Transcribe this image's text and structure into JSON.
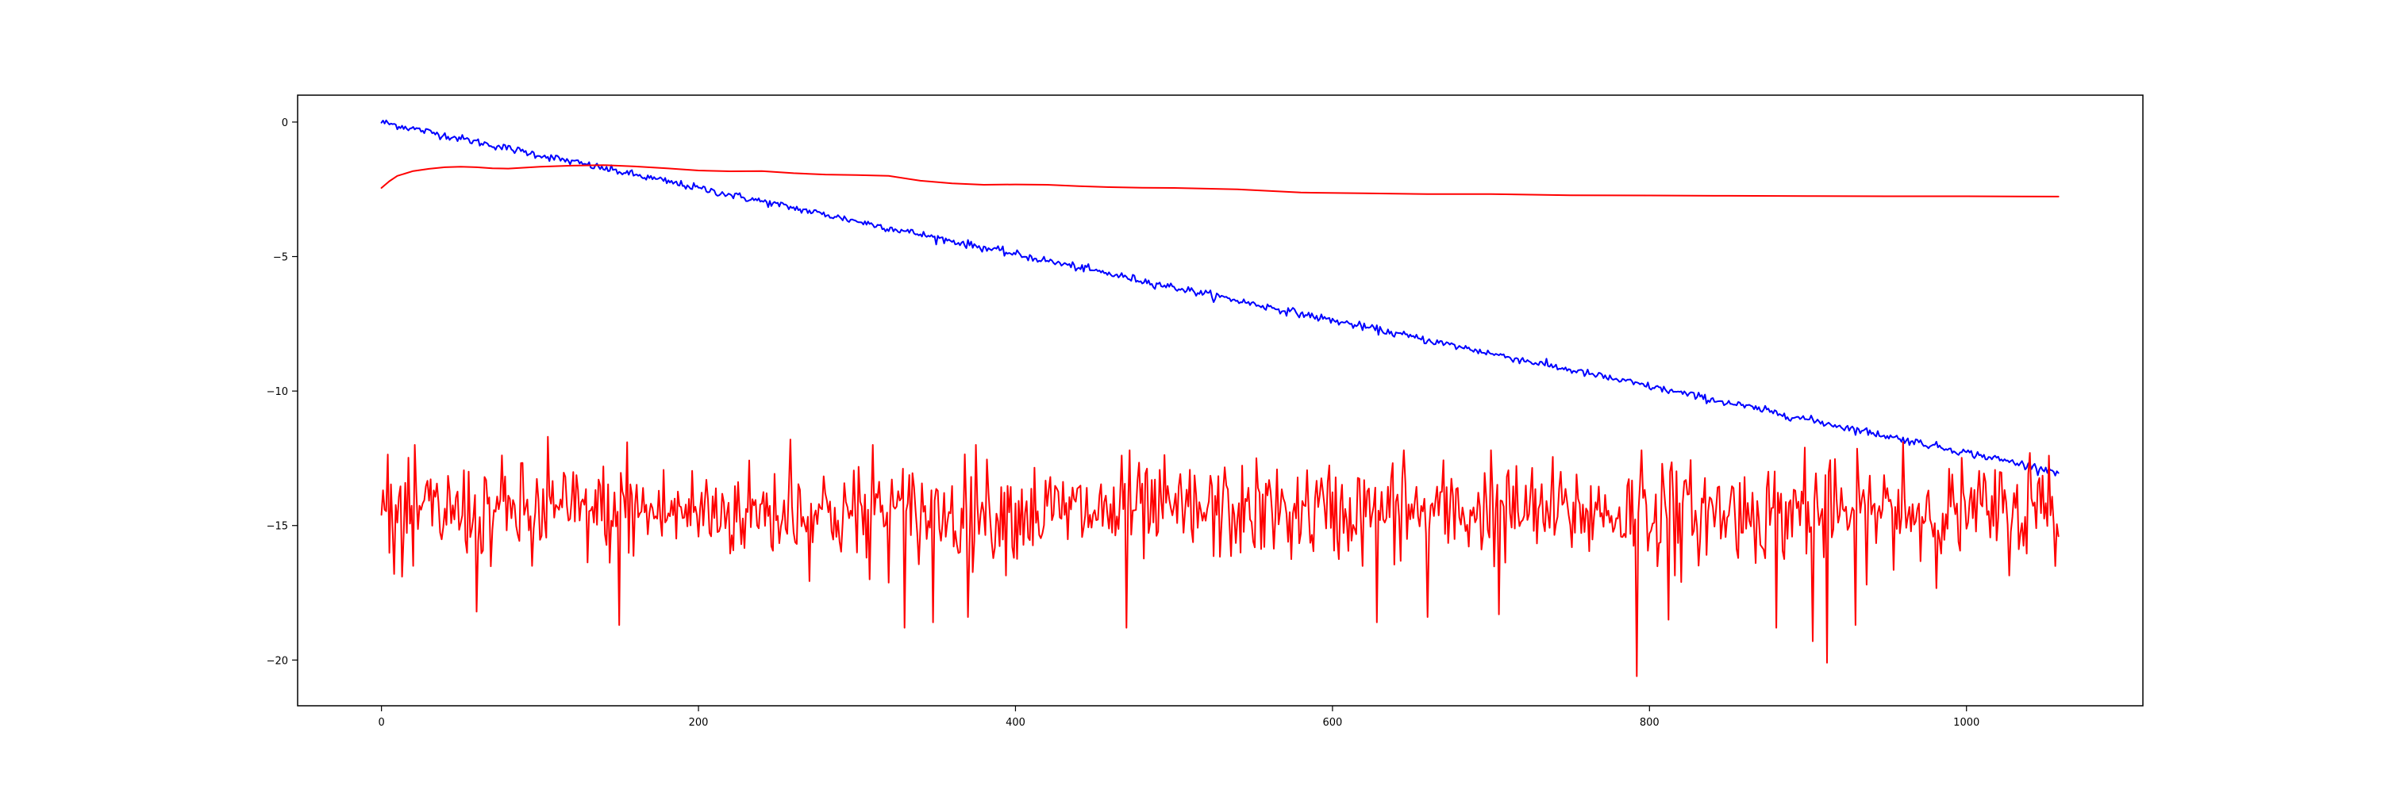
{
  "chart_data": {
    "type": "line",
    "title": "",
    "xlabel": "",
    "ylabel": "",
    "xlim": [
      -52.9,
      1111.3
    ],
    "ylim": [
      -21.7,
      1.0
    ],
    "grid": false,
    "legend": "none",
    "x_ticks": [
      0,
      200,
      400,
      600,
      800,
      1000
    ],
    "x_tick_labels": [
      "0",
      "200",
      "400",
      "600",
      "800",
      "1000"
    ],
    "y_ticks": [
      0,
      -5,
      -10,
      -15,
      -20
    ],
    "y_tick_labels": [
      "0",
      "−5",
      "−10",
      "−15",
      "−20"
    ],
    "x_range": [
      0,
      1058
    ],
    "series": [
      {
        "color": "#0000ff",
        "style": "noisy-linear",
        "start": [
          0,
          0.0
        ],
        "end": [
          1058,
          -13.0
        ],
        "noise_amplitude": 0.12
      },
      {
        "color": "#ff0000",
        "style": "smooth-curve",
        "points": [
          [
            0,
            -2.45
          ],
          [
            5,
            -2.2
          ],
          [
            10,
            -2.0
          ],
          [
            20,
            -1.82
          ],
          [
            30,
            -1.74
          ],
          [
            40,
            -1.68
          ],
          [
            50,
            -1.66
          ],
          [
            60,
            -1.68
          ],
          [
            70,
            -1.72
          ],
          [
            80,
            -1.73
          ],
          [
            100,
            -1.66
          ],
          [
            120,
            -1.62
          ],
          [
            140,
            -1.6
          ],
          [
            160,
            -1.65
          ],
          [
            180,
            -1.72
          ],
          [
            200,
            -1.8
          ],
          [
            220,
            -1.83
          ],
          [
            240,
            -1.82
          ],
          [
            260,
            -1.9
          ],
          [
            280,
            -1.95
          ],
          [
            300,
            -1.97
          ],
          [
            320,
            -2.0
          ],
          [
            340,
            -2.18
          ],
          [
            360,
            -2.28
          ],
          [
            380,
            -2.33
          ],
          [
            400,
            -2.32
          ],
          [
            420,
            -2.33
          ],
          [
            440,
            -2.38
          ],
          [
            460,
            -2.42
          ],
          [
            480,
            -2.44
          ],
          [
            500,
            -2.45
          ],
          [
            540,
            -2.5
          ],
          [
            580,
            -2.62
          ],
          [
            620,
            -2.65
          ],
          [
            660,
            -2.68
          ],
          [
            700,
            -2.68
          ],
          [
            750,
            -2.72
          ],
          [
            800,
            -2.73
          ],
          [
            850,
            -2.74
          ],
          [
            900,
            -2.75
          ],
          [
            950,
            -2.76
          ],
          [
            1000,
            -2.76
          ],
          [
            1058,
            -2.77
          ]
        ]
      },
      {
        "color": "#ff0000",
        "style": "noise",
        "mean": -14.5,
        "std": 0.9,
        "min": -20.6,
        "max": -11.7,
        "first_value": -14.6,
        "last_value": -15.4,
        "spikes": [
          [
            8,
            -16.8
          ],
          [
            13,
            -16.9
          ],
          [
            20,
            -16.5
          ],
          [
            60,
            -18.2
          ],
          [
            95,
            -16.5
          ],
          [
            105,
            -11.7
          ],
          [
            150,
            -18.7
          ],
          [
            155,
            -11.9
          ],
          [
            258,
            -11.8
          ],
          [
            300,
            -16.0
          ],
          [
            308,
            -17.0
          ],
          [
            310,
            -12.0
          ],
          [
            330,
            -18.8
          ],
          [
            348,
            -18.6
          ],
          [
            370,
            -18.4
          ],
          [
            375,
            -12.0
          ],
          [
            470,
            -18.8
          ],
          [
            472,
            -12.2
          ],
          [
            628,
            -18.6
          ],
          [
            645,
            -12.2
          ],
          [
            660,
            -18.4
          ],
          [
            700,
            -12.2
          ],
          [
            705,
            -18.3
          ],
          [
            792,
            -20.6
          ],
          [
            795,
            -12.2
          ],
          [
            808,
            -12.7
          ],
          [
            812,
            -18.5
          ],
          [
            820,
            -17.1
          ],
          [
            880,
            -18.8
          ],
          [
            898,
            -12.1
          ],
          [
            903,
            -19.3
          ],
          [
            912,
            -20.1
          ],
          [
            930,
            -18.7
          ],
          [
            960,
            -11.9
          ],
          [
            1040,
            -12.3
          ],
          [
            1052,
            -12.4
          ],
          [
            1058,
            -15.4
          ]
        ]
      }
    ]
  }
}
